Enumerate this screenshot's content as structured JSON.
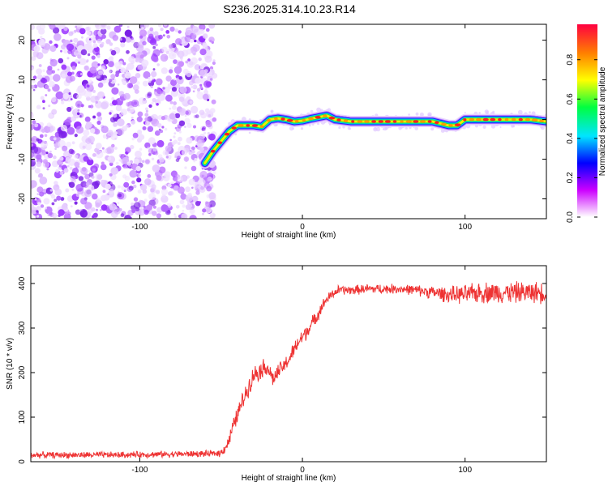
{
  "title": "S236.2025.314.10.23.R14",
  "chart_data": [
    {
      "type": "heatmap",
      "title": "S236.2025.314.10.23.R14",
      "xlabel": "Height of straight line (km)",
      "ylabel": "Frequency (Hz)",
      "xlim": [
        -167,
        150
      ],
      "ylim": [
        -25,
        24
      ],
      "xticks": [
        -100,
        0,
        100
      ],
      "yticks": [
        -20,
        -10,
        0,
        10,
        20
      ],
      "noise_region_x": [
        -167,
        -57
      ],
      "ridge": {
        "x": [
          -60,
          -55,
          -50,
          -45,
          -40,
          -35,
          -30,
          -25,
          -20,
          -15,
          -10,
          -5,
          0,
          5,
          10,
          15,
          20,
          30,
          40,
          50,
          60,
          70,
          80,
          90,
          95,
          100,
          110,
          120,
          130,
          140,
          150
        ],
        "freq": [
          -11,
          -8,
          -5.5,
          -3,
          -1.5,
          -1.5,
          -1.5,
          -1.8,
          0,
          0.3,
          0,
          -0.5,
          -0.3,
          0.2,
          0.6,
          1,
          0,
          -0.5,
          -0.5,
          -0.5,
          -0.5,
          -0.5,
          -0.5,
          -1.5,
          -1.5,
          0,
          0,
          0,
          0,
          0,
          -0.5
        ]
      },
      "colorbar": {
        "label": "Normalized spectral amplitude",
        "ticks": [
          "0.0",
          "0.2",
          "0.4",
          "0.6",
          "0.8"
        ],
        "range": [
          0,
          0.98
        ],
        "colors": [
          "#ffffff",
          "#cc00ff",
          "#0000ff",
          "#00e5ff",
          "#00ff40",
          "#ffff00",
          "#ff8000",
          "#ff0040"
        ]
      }
    },
    {
      "type": "line",
      "xlabel": "Height of straight line (km)",
      "ylabel": "SNR (10 * v/v)",
      "xlim": [
        -167,
        150
      ],
      "ylim": [
        0,
        440
      ],
      "xticks": [
        -100,
        0,
        100
      ],
      "yticks": [
        0,
        100,
        200,
        300,
        400
      ],
      "color": "#ee3333",
      "series": [
        {
          "name": "SNR",
          "x": [
            -167,
            -120,
            -80,
            -55,
            -50,
            -46,
            -42,
            -38,
            -34,
            -30,
            -26,
            -22,
            -18,
            -14,
            -10,
            -6,
            -2,
            2,
            6,
            10,
            14,
            18,
            22,
            26,
            30,
            40,
            50,
            60,
            70,
            80,
            90,
            100,
            110,
            120,
            130,
            140,
            150
          ],
          "values": [
            15,
            15,
            17,
            18,
            20,
            40,
            85,
            125,
            160,
            195,
            205,
            215,
            185,
            205,
            220,
            245,
            270,
            290,
            310,
            335,
            360,
            375,
            385,
            385,
            385,
            388,
            388,
            388,
            385,
            380,
            375,
            375,
            380,
            380,
            380,
            380,
            380
          ],
          "noise_amplitude": [
            12,
            12,
            12,
            12,
            15,
            25,
            30,
            35,
            35,
            35,
            35,
            35,
            30,
            30,
            30,
            30,
            30,
            30,
            28,
            25,
            20,
            18,
            18,
            18,
            18,
            18,
            18,
            18,
            20,
            25,
            30,
            35,
            40,
            40,
            40,
            40,
            40
          ]
        }
      ]
    }
  ]
}
